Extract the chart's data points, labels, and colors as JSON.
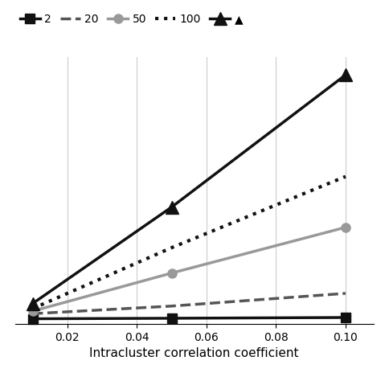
{
  "x": [
    0.01,
    0.05,
    0.1
  ],
  "series": [
    {
      "label": "2",
      "y": [
        0.02,
        0.022,
        0.025
      ],
      "color": "#111111",
      "linestyle": "solid",
      "linewidth": 2.5,
      "marker": "s",
      "markersize": 8,
      "markerfacecolor": "#111111"
    },
    {
      "label": "20",
      "y": [
        0.04,
        0.07,
        0.12
      ],
      "color": "#555555",
      "linestyle": "dashed",
      "linewidth": 2.5,
      "marker": null,
      "markersize": 0,
      "markerfacecolor": "#555555"
    },
    {
      "label": "50",
      "y": [
        0.05,
        0.2,
        0.38
      ],
      "color": "#999999",
      "linestyle": "solid",
      "linewidth": 2.5,
      "marker": "o",
      "markersize": 8,
      "markerfacecolor": "#999999"
    },
    {
      "label": "100",
      "y": [
        0.06,
        0.3,
        0.58
      ],
      "color": "#111111",
      "linestyle": "dotted",
      "linewidth": 3.0,
      "marker": null,
      "markersize": 0,
      "markerfacecolor": "#111111"
    },
    {
      "label": "▲",
      "y": [
        0.08,
        0.46,
        0.98
      ],
      "color": "#111111",
      "linestyle": "solid",
      "linewidth": 2.5,
      "marker": "^",
      "markersize": 11,
      "markerfacecolor": "#111111"
    }
  ],
  "xlabel": "Intracluster correlation coefficient",
  "xlim": [
    0.005,
    0.108
  ],
  "ylim": [
    0.0,
    1.05
  ],
  "xticks": [
    0.02,
    0.04,
    0.06,
    0.08,
    0.1
  ],
  "grid": true,
  "background_color": "#ffffff",
  "xlabel_fontsize": 11
}
